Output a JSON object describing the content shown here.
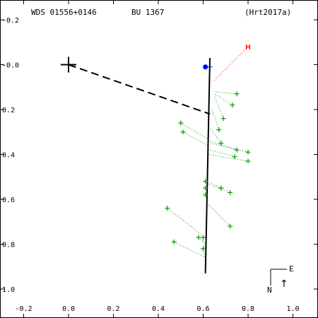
{
  "header": {
    "id": "WDS 01556+0146",
    "discoverer": "BU 1367",
    "orbit_ref": "(Hrt2017a)"
  },
  "chart_data": {
    "type": "scatter",
    "xlim": [
      -0.2,
      1.1
    ],
    "ylim": [
      -1.07,
      0.22
    ],
    "x_ticks": [
      -0.2,
      0.0,
      0.2,
      0.4,
      0.6,
      0.8,
      1.0
    ],
    "y_ticks": [
      0.2,
      0.0,
      -0.2,
      -0.4,
      -0.6,
      -0.8,
      -1.0
    ],
    "x_tick_labels": [
      "-0.2",
      "0.0",
      "0.2",
      "0.4",
      "0.6",
      "0.8",
      "1.0"
    ],
    "y_tick_labels": [
      "-0.2",
      "-0.0",
      "0.2",
      "0.4",
      "0.6",
      "0.8",
      "1.0"
    ],
    "primary": [
      0.0,
      0.0
    ],
    "orbit": [
      [
        0.63,
        0.03
      ],
      [
        0.61,
        -0.93
      ]
    ],
    "node_line": [
      [
        0.0,
        0.0
      ],
      [
        0.63,
        -0.22
      ]
    ],
    "current_position": [
      0.61,
      -0.01
    ],
    "observations": [
      {
        "x": 0.75,
        "y": -0.13,
        "px": 0.65,
        "py": -0.12
      },
      {
        "x": 0.73,
        "y": -0.18,
        "px": 0.65,
        "py": -0.13
      },
      {
        "x": 0.69,
        "y": -0.24,
        "px": 0.65,
        "py": -0.14
      },
      {
        "x": 0.67,
        "y": -0.29,
        "px": 0.64,
        "py": -0.2
      },
      {
        "x": 0.68,
        "y": -0.35,
        "px": 0.63,
        "py": -0.28
      },
      {
        "x": 0.5,
        "y": -0.26,
        "px": 0.62,
        "py": -0.33
      },
      {
        "x": 0.51,
        "y": -0.3,
        "px": 0.62,
        "py": -0.36
      },
      {
        "x": 0.75,
        "y": -0.38,
        "px": 0.63,
        "py": -0.34
      },
      {
        "x": 0.74,
        "y": -0.41,
        "px": 0.63,
        "py": -0.38
      },
      {
        "x": 0.8,
        "y": -0.39,
        "px": 0.63,
        "py": -0.35
      },
      {
        "x": 0.8,
        "y": -0.43,
        "px": 0.62,
        "py": -0.4
      },
      {
        "x": 0.61,
        "y": -0.52,
        "px": 0.62,
        "py": -0.52
      },
      {
        "x": 0.61,
        "y": -0.55,
        "px": 0.62,
        "py": -0.54
      },
      {
        "x": 0.61,
        "y": -0.58,
        "px": 0.62,
        "py": -0.56
      },
      {
        "x": 0.68,
        "y": -0.55,
        "px": 0.62,
        "py": -0.52
      },
      {
        "x": 0.72,
        "y": -0.57,
        "px": 0.62,
        "py": -0.53
      },
      {
        "x": 0.44,
        "y": -0.64,
        "px": 0.61,
        "py": -0.77
      },
      {
        "x": 0.72,
        "y": -0.72,
        "px": 0.62,
        "py": -0.62
      },
      {
        "x": 0.58,
        "y": -0.77,
        "px": 0.61,
        "py": -0.8
      },
      {
        "x": 0.6,
        "y": -0.77,
        "px": 0.61,
        "py": -0.83
      },
      {
        "x": 0.47,
        "y": -0.79,
        "px": 0.61,
        "py": -0.86
      },
      {
        "x": 0.6,
        "y": -0.82,
        "px": 0.61,
        "py": -0.87
      }
    ],
    "h_marker": {
      "x": 0.8,
      "y": 0.08,
      "label": "H",
      "px": 0.65,
      "py": -0.07
    },
    "compass": {
      "east": "E",
      "north": "N",
      "arrow": "↑"
    },
    "colors": {
      "observation": "#009900",
      "h_marker": "#ff0000",
      "current_position": "#0000ff",
      "orbit": "#000000"
    }
  }
}
